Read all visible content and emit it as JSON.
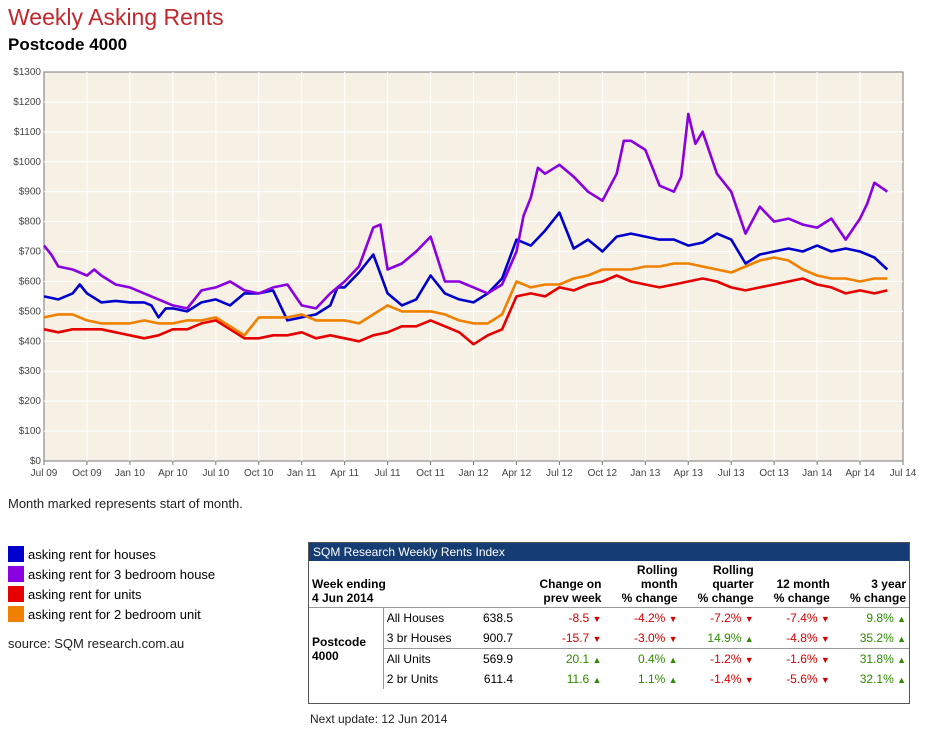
{
  "header": {
    "title": "Weekly Asking Rents",
    "subtitle": "Postcode 4000"
  },
  "chart_data": {
    "type": "line",
    "title": "Weekly Asking Rents",
    "subtitle": "Postcode 4000",
    "xlabel": "",
    "ylabel": "",
    "ylim": [
      0,
      1300
    ],
    "y_ticks": [
      0,
      100,
      200,
      300,
      400,
      500,
      600,
      700,
      800,
      900,
      1000,
      1100,
      1200,
      1300
    ],
    "y_tick_labels": [
      "$0",
      "$100",
      "$200",
      "$300",
      "$400",
      "$500",
      "$600",
      "$700",
      "$800",
      "$900",
      "$1000",
      "$1100",
      "$1200",
      "$1300"
    ],
    "x_ticks": [
      0,
      3,
      6,
      9,
      12,
      15,
      18,
      21,
      24,
      27,
      30,
      33,
      36,
      39,
      42,
      45,
      48,
      51,
      54,
      57,
      60
    ],
    "x_tick_labels": [
      "Jul 09",
      "Oct 09",
      "Jan 10",
      "Apr 10",
      "Jul 10",
      "Oct 10",
      "Jan 11",
      "Apr 11",
      "Jul 11",
      "Oct 11",
      "Jan 12",
      "Apr 12",
      "Jul 12",
      "Oct 12",
      "Jan 13",
      "Apr 13",
      "Jul 13",
      "Oct 13",
      "Jan 14",
      "Apr 14",
      "Jul 14"
    ],
    "x_unit": "months since Jul 09",
    "grid": true,
    "series": [
      {
        "name": "asking rent for houses",
        "color": "#0000cc",
        "x": [
          0,
          1,
          2,
          2.5,
          3,
          4,
          5,
          6,
          7,
          7.5,
          8,
          8.5,
          9,
          10,
          11,
          12,
          13,
          14,
          15,
          16,
          17,
          18,
          19,
          20,
          20.5,
          21,
          22,
          23,
          24,
          25,
          26,
          27,
          28,
          29,
          30,
          31,
          32,
          33,
          33.5,
          34,
          35,
          36,
          37,
          38,
          39,
          40,
          41,
          42,
          43,
          44,
          45,
          46,
          47,
          48,
          49,
          50,
          51,
          52,
          53,
          54,
          55,
          56,
          57,
          58,
          58.9
        ],
        "values": [
          550,
          540,
          560,
          590,
          560,
          530,
          535,
          530,
          530,
          520,
          480,
          510,
          510,
          500,
          530,
          540,
          520,
          560,
          560,
          570,
          470,
          480,
          490,
          520,
          580,
          580,
          630,
          690,
          560,
          520,
          540,
          620,
          560,
          540,
          530,
          560,
          610,
          740,
          730,
          720,
          770,
          830,
          710,
          740,
          700,
          750,
          760,
          750,
          740,
          740,
          720,
          730,
          760,
          740,
          660,
          690,
          700,
          710,
          700,
          720,
          700,
          710,
          700,
          680,
          640
        ]
      },
      {
        "name": "asking rent for 3 bedroom house",
        "color": "#8a00e0",
        "x": [
          0,
          0.5,
          1,
          2,
          3,
          3.5,
          4,
          5,
          6,
          7,
          8,
          9,
          10,
          11,
          12,
          13,
          14,
          15,
          16,
          17,
          18,
          19,
          20,
          21,
          22,
          23,
          23.5,
          24,
          25,
          26,
          27,
          28,
          29,
          30,
          31,
          32,
          33,
          33.5,
          34,
          34.5,
          35,
          36,
          37,
          38,
          39,
          40,
          40.5,
          41,
          42,
          43,
          44,
          44.5,
          45,
          45.5,
          46,
          47,
          48,
          49,
          50,
          51,
          52,
          53,
          54,
          55,
          56,
          57,
          57.5,
          58,
          58.9
        ],
        "values": [
          720,
          690,
          650,
          640,
          620,
          640,
          620,
          590,
          580,
          560,
          540,
          520,
          510,
          570,
          580,
          600,
          570,
          560,
          580,
          590,
          520,
          510,
          560,
          600,
          650,
          780,
          790,
          640,
          660,
          700,
          750,
          600,
          600,
          580,
          560,
          590,
          700,
          820,
          880,
          980,
          960,
          990,
          950,
          900,
          870,
          960,
          1070,
          1070,
          1040,
          920,
          900,
          950,
          1160,
          1060,
          1100,
          960,
          900,
          760,
          850,
          800,
          810,
          790,
          780,
          810,
          740,
          810,
          860,
          930,
          900
        ]
      },
      {
        "name": "asking rent for units",
        "color": "#e60000",
        "x": [
          0,
          1,
          2,
          3,
          4,
          5,
          6,
          7,
          8,
          9,
          10,
          11,
          12,
          13,
          14,
          15,
          16,
          17,
          18,
          19,
          20,
          21,
          22,
          23,
          24,
          25,
          26,
          27,
          28,
          29,
          30,
          31,
          32,
          33,
          34,
          35,
          36,
          37,
          38,
          39,
          40,
          41,
          42,
          43,
          44,
          45,
          46,
          47,
          48,
          49,
          50,
          51,
          52,
          53,
          54,
          55,
          56,
          57,
          58,
          58.9
        ],
        "values": [
          440,
          430,
          440,
          440,
          440,
          430,
          420,
          410,
          420,
          440,
          440,
          460,
          470,
          440,
          410,
          410,
          420,
          420,
          430,
          410,
          420,
          410,
          400,
          420,
          430,
          450,
          450,
          470,
          450,
          430,
          390,
          420,
          440,
          550,
          560,
          550,
          580,
          570,
          590,
          600,
          620,
          600,
          590,
          580,
          590,
          600,
          610,
          600,
          580,
          570,
          580,
          590,
          600,
          610,
          590,
          580,
          560,
          570,
          560,
          570
        ]
      },
      {
        "name": "asking rent for 2 bedroom unit",
        "color": "#f08000",
        "x": [
          0,
          1,
          2,
          3,
          4,
          5,
          6,
          7,
          8,
          9,
          10,
          11,
          12,
          13,
          14,
          15,
          16,
          17,
          18,
          19,
          20,
          21,
          22,
          23,
          24,
          25,
          26,
          27,
          28,
          29,
          30,
          31,
          32,
          33,
          34,
          35,
          36,
          37,
          38,
          39,
          40,
          41,
          42,
          43,
          44,
          45,
          46,
          47,
          48,
          49,
          50,
          51,
          52,
          53,
          54,
          55,
          56,
          57,
          58,
          58.9
        ],
        "values": [
          480,
          490,
          490,
          470,
          460,
          460,
          460,
          470,
          460,
          460,
          470,
          470,
          480,
          450,
          420,
          480,
          480,
          480,
          490,
          470,
          470,
          470,
          460,
          490,
          520,
          500,
          500,
          500,
          490,
          470,
          460,
          460,
          490,
          600,
          580,
          590,
          590,
          610,
          620,
          640,
          640,
          640,
          650,
          650,
          660,
          660,
          650,
          640,
          630,
          650,
          670,
          680,
          670,
          640,
          620,
          610,
          610,
          600,
          610,
          610
        ]
      }
    ]
  },
  "note": "Month marked represents start of month.",
  "legend": [
    {
      "label": "asking rent for houses",
      "color": "#0000cc"
    },
    {
      "label": "asking rent for 3 bedroom house",
      "color": "#8a00e0"
    },
    {
      "label": "asking rent for units",
      "color": "#e60000"
    },
    {
      "label": "asking rent for 2 bedroom unit",
      "color": "#f08000"
    }
  ],
  "source": "source: SQM research.com.au",
  "table": {
    "title": "SQM Research Weekly Rents Index",
    "week_label": "Week ending",
    "week_date": "4 Jun 2014",
    "headers": [
      [
        "Change on",
        "prev week"
      ],
      [
        "Rolling",
        "month",
        "% change"
      ],
      [
        "Rolling",
        "quarter",
        "% change"
      ],
      [
        "12 month",
        "% change"
      ],
      [
        "3 year",
        "% change"
      ]
    ],
    "group_label": [
      "Postcode",
      "4000"
    ],
    "rows": [
      {
        "label": "All Houses",
        "value": "638.5",
        "cells": [
          {
            "text": "-8.5",
            "dir": "down"
          },
          {
            "text": "-4.2%",
            "dir": "down"
          },
          {
            "text": "-7.2%",
            "dir": "down"
          },
          {
            "text": "-7.4%",
            "dir": "down"
          },
          {
            "text": "9.8%",
            "dir": "up"
          }
        ]
      },
      {
        "label": "3 br Houses",
        "value": "900.7",
        "cells": [
          {
            "text": "-15.7",
            "dir": "down"
          },
          {
            "text": "-3.0%",
            "dir": "down"
          },
          {
            "text": "14.9%",
            "dir": "up"
          },
          {
            "text": "-4.8%",
            "dir": "down"
          },
          {
            "text": "35.2%",
            "dir": "up"
          }
        ]
      },
      {
        "label": "All Units",
        "value": "569.9",
        "cells": [
          {
            "text": "20.1",
            "dir": "up"
          },
          {
            "text": "0.4%",
            "dir": "up"
          },
          {
            "text": "-1.2%",
            "dir": "down"
          },
          {
            "text": "-1.6%",
            "dir": "down"
          },
          {
            "text": "31.8%",
            "dir": "up"
          }
        ]
      },
      {
        "label": "2 br Units",
        "value": "611.4",
        "cells": [
          {
            "text": "11.6",
            "dir": "up"
          },
          {
            "text": "1.1%",
            "dir": "up"
          },
          {
            "text": "-1.4%",
            "dir": "down"
          },
          {
            "text": "-5.6%",
            "dir": "down"
          },
          {
            "text": "32.1%",
            "dir": "up"
          }
        ]
      }
    ],
    "arrow_up": "▲",
    "arrow_down": "▼",
    "colors": {
      "up": "#2e8b00",
      "down": "#d40000",
      "header_bg": "#163d73"
    }
  },
  "next_update": "Next update: 12 Jun 2014"
}
